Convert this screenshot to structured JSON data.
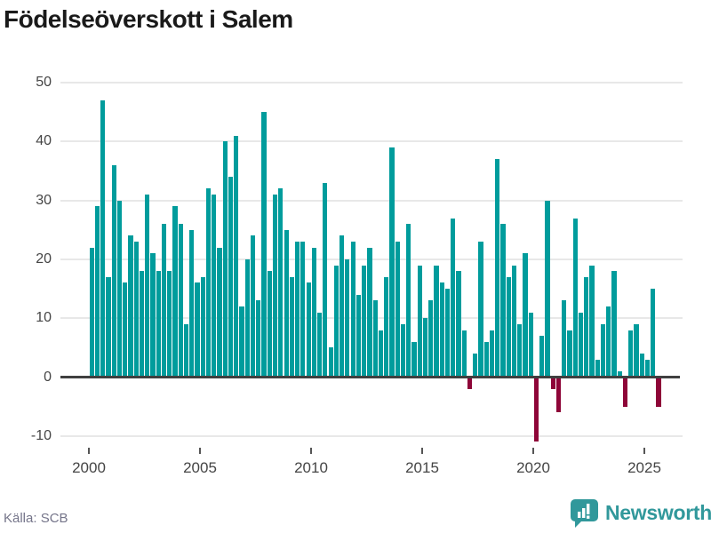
{
  "title": "Födelseöverskott i Salem",
  "source": "Källa: SCB",
  "branding": {
    "name": "Newsworthy",
    "logo_icon": "bar-chart-speech-bubble-icon"
  },
  "colors": {
    "positive_bar": "#009c9c",
    "negative_bar": "#8e0538",
    "zero_axis": "#404040",
    "gridline": "#e8e8e8",
    "axis_label": "#454545",
    "title_text": "#1a1a1a",
    "source_text": "#75758a",
    "brand_teal": "#31989b"
  },
  "chart_data": {
    "type": "bar",
    "title": "Födelseöverskott i Salem",
    "xlabel": "",
    "ylabel": "",
    "period": "quarterly",
    "start_year": 2000,
    "x_tick_years": [
      "2000",
      "2005",
      "2010",
      "2015",
      "2020",
      "2025"
    ],
    "y_ticks": [
      50,
      40,
      30,
      20,
      10,
      0,
      -10
    ],
    "ylim": [
      -13,
      52
    ],
    "grid": true,
    "legend": "none",
    "values": [
      22,
      29,
      47,
      17,
      36,
      30,
      16,
      24,
      23,
      18,
      31,
      21,
      18,
      26,
      18,
      29,
      26,
      9,
      25,
      16,
      17,
      32,
      31,
      22,
      40,
      34,
      41,
      12,
      20,
      24,
      13,
      45,
      18,
      31,
      32,
      25,
      17,
      23,
      23,
      16,
      22,
      11,
      33,
      5,
      19,
      24,
      20,
      23,
      14,
      19,
      22,
      13,
      8,
      17,
      39,
      23,
      9,
      26,
      6,
      19,
      10,
      13,
      19,
      16,
      15,
      27,
      18,
      8,
      -2,
      4,
      23,
      6,
      8,
      37,
      26,
      17,
      19,
      9,
      21,
      11,
      -11,
      7,
      30,
      -2,
      -6,
      13,
      8,
      27,
      11,
      17,
      19,
      3,
      9,
      12,
      18,
      1,
      -5,
      8,
      9,
      4,
      3,
      15,
      -5
    ]
  }
}
